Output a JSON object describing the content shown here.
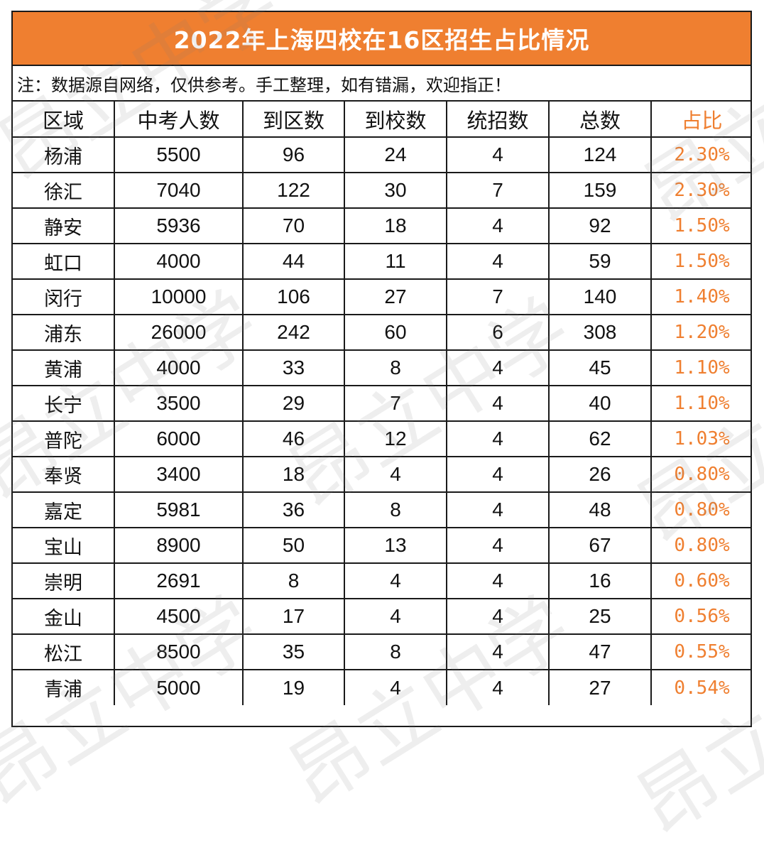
{
  "title": "2022年上海四校在16区招生占比情况",
  "note": "注：数据源自网络，仅供参考。手工整理，如有错漏，欢迎指正！",
  "headers": [
    "区域",
    "中考人数",
    "到区数",
    "到校数",
    "统招数",
    "总数",
    "占比"
  ],
  "rows": [
    {
      "district": "杨浦",
      "exam": "5500",
      "to_district": "96",
      "to_school": "24",
      "unified": "4",
      "total": "124",
      "ratio": "2.30%"
    },
    {
      "district": "徐汇",
      "exam": "7040",
      "to_district": "122",
      "to_school": "30",
      "unified": "7",
      "total": "159",
      "ratio": "2.30%"
    },
    {
      "district": "静安",
      "exam": "5936",
      "to_district": "70",
      "to_school": "18",
      "unified": "4",
      "total": "92",
      "ratio": "1.50%"
    },
    {
      "district": "虹口",
      "exam": "4000",
      "to_district": "44",
      "to_school": "11",
      "unified": "4",
      "total": "59",
      "ratio": "1.50%"
    },
    {
      "district": "闵行",
      "exam": "10000",
      "to_district": "106",
      "to_school": "27",
      "unified": "7",
      "total": "140",
      "ratio": "1.40%"
    },
    {
      "district": "浦东",
      "exam": "26000",
      "to_district": "242",
      "to_school": "60",
      "unified": "6",
      "total": "308",
      "ratio": "1.20%"
    },
    {
      "district": "黄浦",
      "exam": "4000",
      "to_district": "33",
      "to_school": "8",
      "unified": "4",
      "total": "45",
      "ratio": "1.10%"
    },
    {
      "district": "长宁",
      "exam": "3500",
      "to_district": "29",
      "to_school": "7",
      "unified": "4",
      "total": "40",
      "ratio": "1.10%"
    },
    {
      "district": "普陀",
      "exam": "6000",
      "to_district": "46",
      "to_school": "12",
      "unified": "4",
      "total": "62",
      "ratio": "1.03%"
    },
    {
      "district": "奉贤",
      "exam": "3400",
      "to_district": "18",
      "to_school": "4",
      "unified": "4",
      "total": "26",
      "ratio": "0.80%"
    },
    {
      "district": "嘉定",
      "exam": "5981",
      "to_district": "36",
      "to_school": "8",
      "unified": "4",
      "total": "48",
      "ratio": "0.80%"
    },
    {
      "district": "宝山",
      "exam": "8900",
      "to_district": "50",
      "to_school": "13",
      "unified": "4",
      "total": "67",
      "ratio": "0.80%"
    },
    {
      "district": "崇明",
      "exam": "2691",
      "to_district": "8",
      "to_school": "4",
      "unified": "4",
      "total": "16",
      "ratio": "0.60%"
    },
    {
      "district": "金山",
      "exam": "4500",
      "to_district": "17",
      "to_school": "4",
      "unified": "4",
      "total": "25",
      "ratio": "0.56%"
    },
    {
      "district": "松江",
      "exam": "8500",
      "to_district": "35",
      "to_school": "8",
      "unified": "4",
      "total": "47",
      "ratio": "0.55%"
    },
    {
      "district": "青浦",
      "exam": "5000",
      "to_district": "19",
      "to_school": "4",
      "unified": "4",
      "total": "27",
      "ratio": "0.54%"
    }
  ],
  "watermark": "昂立中学",
  "colors": {
    "accent": "#ef7f30",
    "border": "#1a1a1a",
    "text": "#111111"
  }
}
